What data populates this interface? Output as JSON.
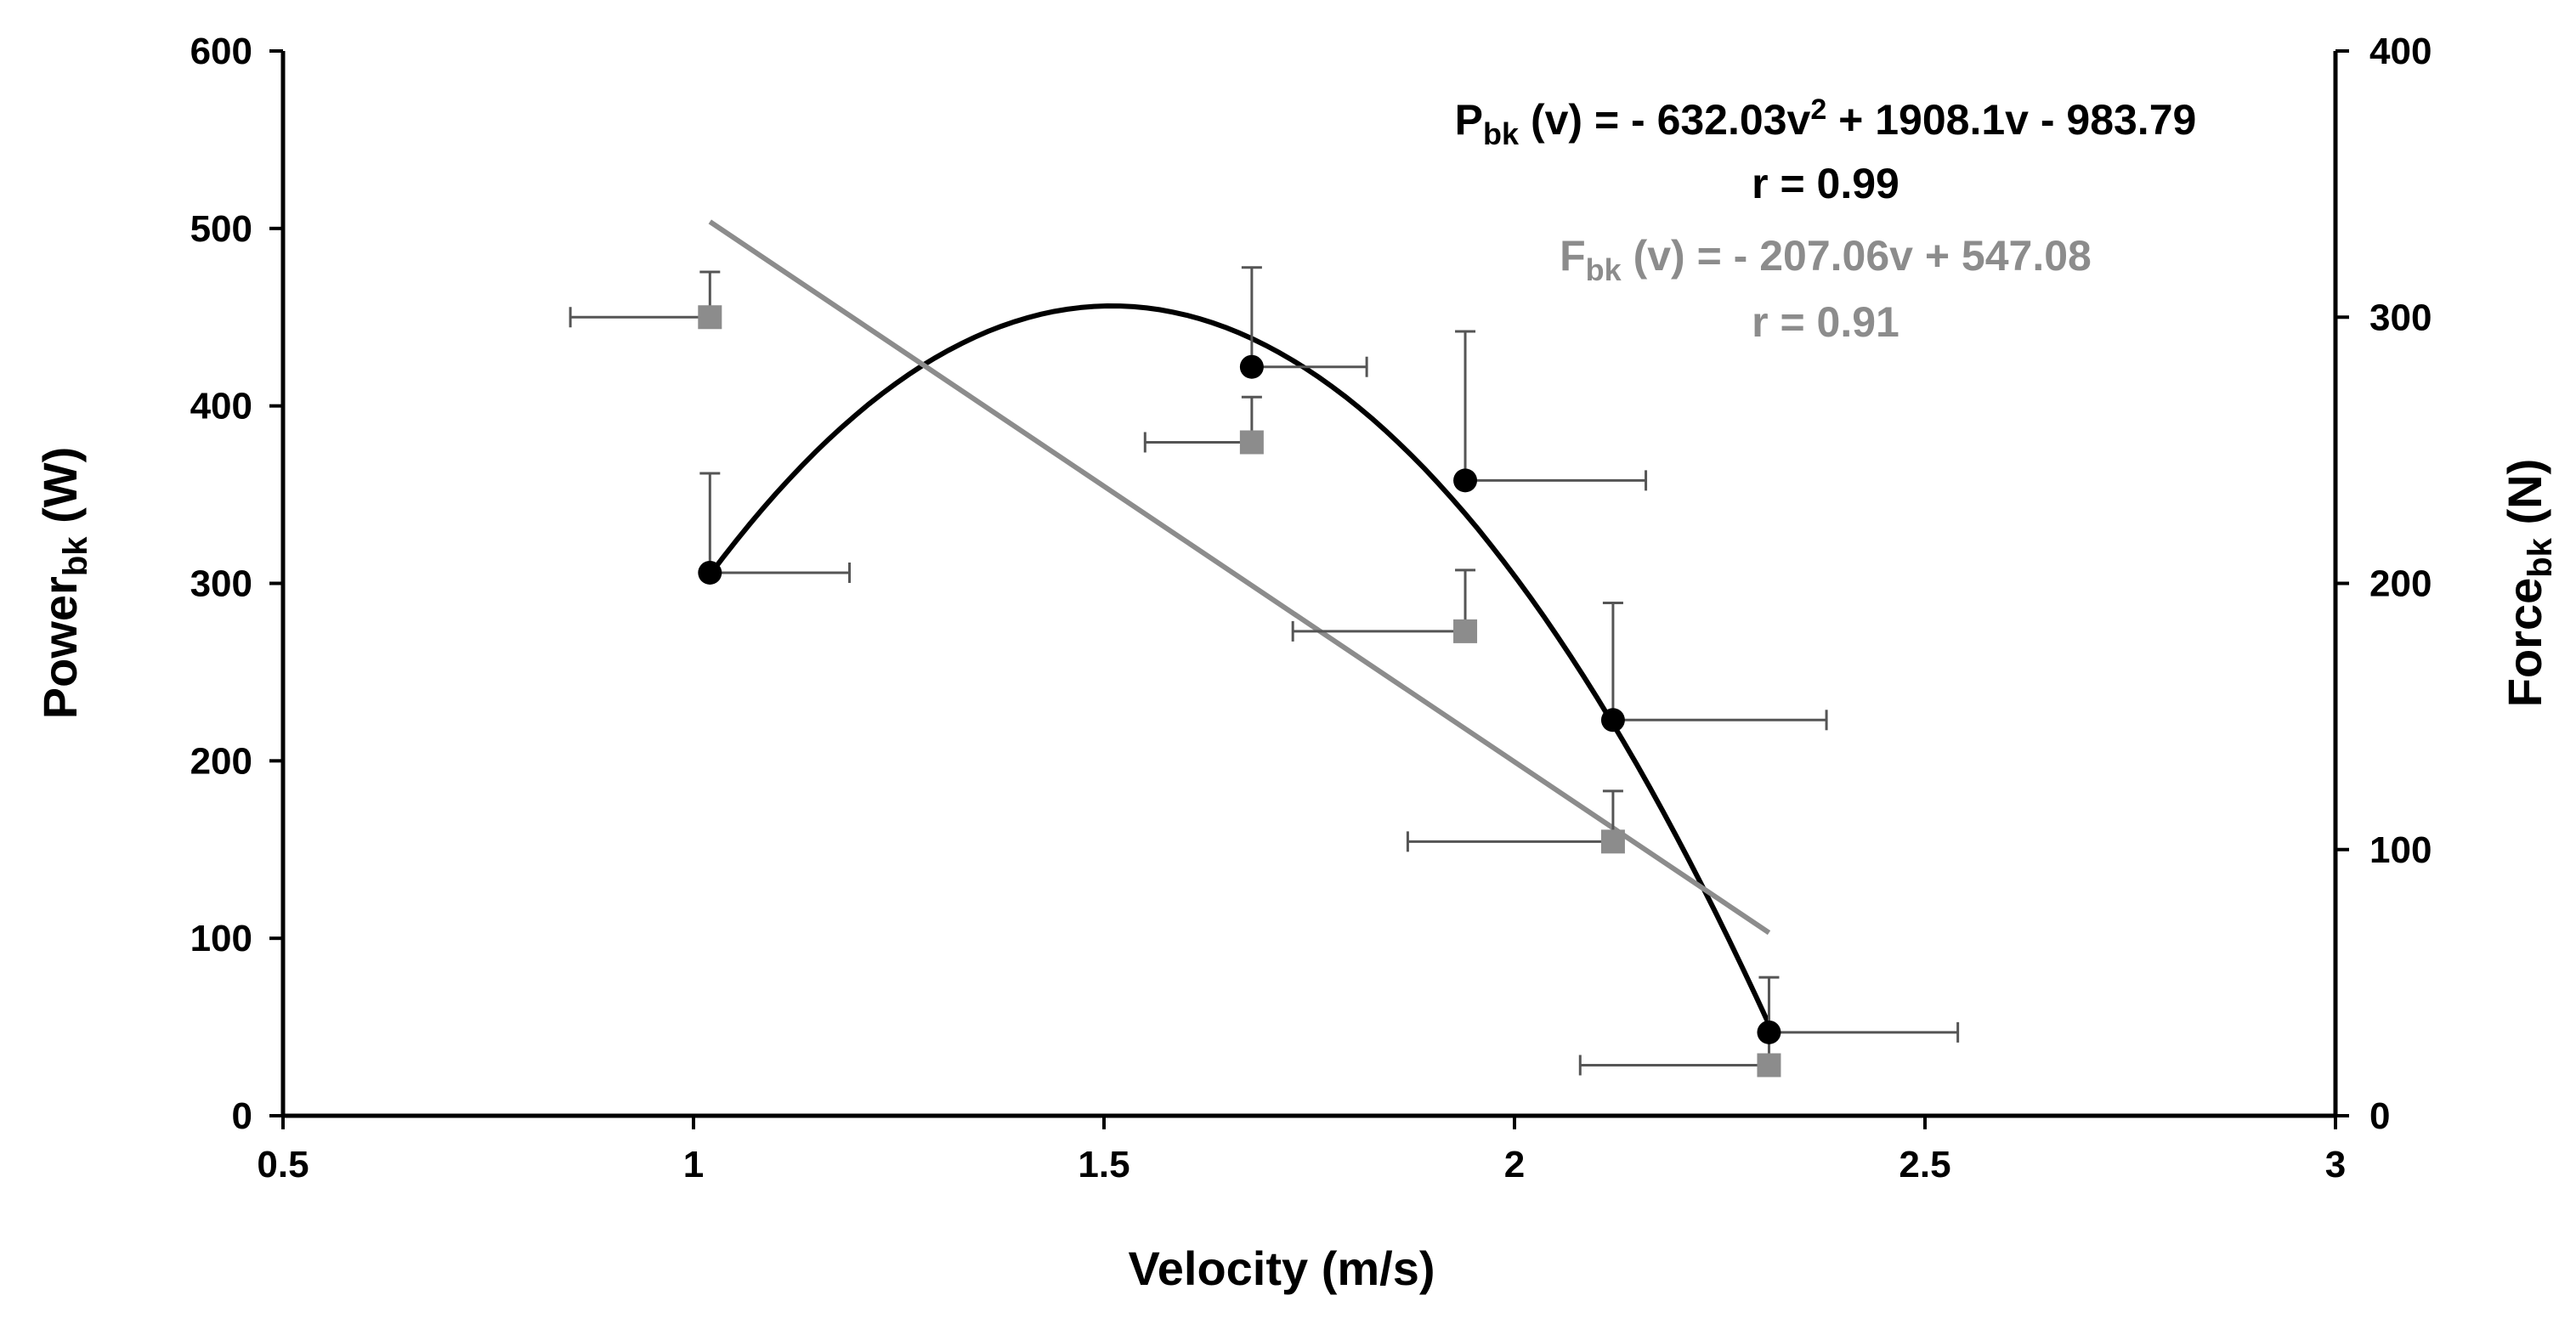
{
  "chart_data": {
    "type": "scatter",
    "xlabel": "Velocity (m/s)",
    "ylabel_left": {
      "main": "Power",
      "sub": "bk",
      "unit": " (W)"
    },
    "ylabel_right": {
      "main": "Force",
      "sub": "bk",
      "unit": " (N)"
    },
    "xlim": [
      0.5,
      3
    ],
    "ylim_left": [
      0,
      600
    ],
    "ylim_right": [
      0,
      400
    ],
    "x_ticks": [
      "0.5",
      "1",
      "1.5",
      "2",
      "2.5",
      "3"
    ],
    "y_left_ticks": [
      "0",
      "100",
      "200",
      "300",
      "400",
      "500",
      "600"
    ],
    "y_right_ticks": [
      "0",
      "100",
      "200",
      "300",
      "400"
    ],
    "colors": {
      "power": "#000000",
      "force": "#8c8c8c",
      "errorbar": "#555555"
    },
    "series": [
      {
        "name": "Power_bk",
        "axis": "left",
        "marker": "circle",
        "points": [
          {
            "x": 1.02,
            "y": 306,
            "y_err": 56,
            "x_err": 0.17
          },
          {
            "x": 1.68,
            "y": 422,
            "y_err": 56,
            "x_err": 0.14
          },
          {
            "x": 1.94,
            "y": 358,
            "y_err": 84,
            "x_err": 0.22
          },
          {
            "x": 2.12,
            "y": 223,
            "y_err": 66,
            "x_err": 0.26
          },
          {
            "x": 2.31,
            "y": 47,
            "y_err": 31,
            "x_err": 0.23
          }
        ]
      },
      {
        "name": "Force_bk",
        "axis": "right",
        "marker": "square",
        "points": [
          {
            "x": 1.02,
            "y": 300,
            "y_err": 17,
            "x_err": 0.17
          },
          {
            "x": 1.68,
            "y": 253,
            "y_err": 17,
            "x_err": 0.13
          },
          {
            "x": 1.94,
            "y": 182,
            "y_err": 23,
            "x_err": 0.21
          },
          {
            "x": 2.12,
            "y": 103,
            "y_err": 19,
            "x_err": 0.25
          },
          {
            "x": 2.31,
            "y": 19,
            "y_err": 11,
            "x_err": 0.23
          }
        ]
      }
    ],
    "fits": [
      {
        "name": "Power fit",
        "axis": "left",
        "type": "quadratic",
        "coef": [
          -632.03,
          1908.1,
          -983.79
        ],
        "x_range": [
          1.02,
          2.31
        ]
      },
      {
        "name": "Force fit",
        "axis": "right",
        "type": "linear",
        "coef": [
          -207.06,
          547.08
        ],
        "x_range": [
          1.02,
          2.31
        ]
      }
    ],
    "annotations": {
      "power_eq": {
        "P": "P",
        "sub": "bk",
        "rest": " (v) = - 632.03v",
        "sup": "2",
        "tail": " + 1908.1v - 983.79"
      },
      "power_r": "r = 0.99",
      "force_eq": {
        "F": "F",
        "sub": "bk",
        "rest": " (v) = - 207.06v + 547.08"
      },
      "force_r": "r = 0.91"
    }
  }
}
